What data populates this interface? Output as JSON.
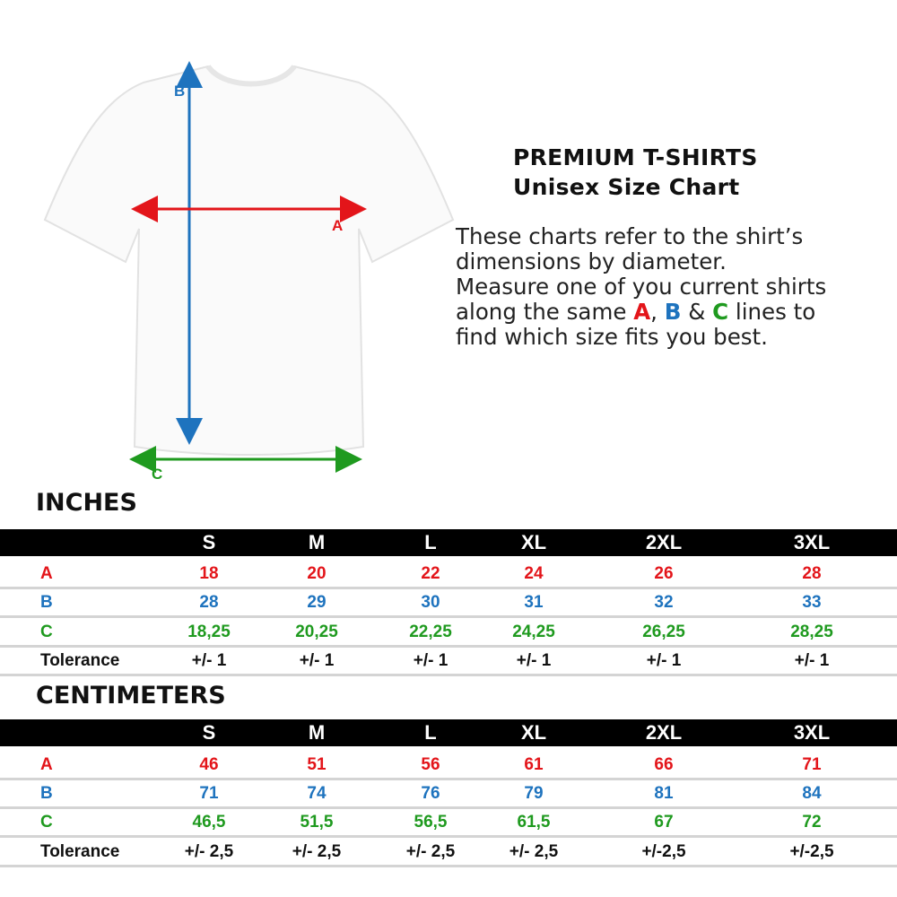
{
  "colors": {
    "A": "#e3151a",
    "B": "#1e73be",
    "C": "#1f9a1f",
    "text": "#111111",
    "header_bg": "#000000"
  },
  "diagram": {
    "labels": {
      "A": "A",
      "B": "B",
      "C": "C"
    }
  },
  "info": {
    "title_line1": "PREMIUM T-SHIRTS",
    "title_line2": "Unisex Size Chart",
    "desc_1": "These charts refer to the shirt’s",
    "desc_2": "dimensions by diameter.",
    "desc_3": "Measure one of you current shirts",
    "desc_4a": "along the same ",
    "desc_4A": "A",
    "desc_4b": ", ",
    "desc_4B": "B",
    "desc_4c": " & ",
    "desc_4C": "C",
    "desc_4d": " lines to",
    "desc_5": "find which size fits you best."
  },
  "tables": [
    {
      "heading": "INCHES",
      "sizes": [
        "S",
        "M",
        "L",
        "XL",
        "2XL",
        "3XL"
      ],
      "rows": [
        {
          "label": "A",
          "values": [
            "18",
            "20",
            "22",
            "24",
            "26",
            "28"
          ]
        },
        {
          "label": "B",
          "values": [
            "28",
            "29",
            "30",
            "31",
            "32",
            "33"
          ]
        },
        {
          "label": "C",
          "values": [
            "18,25",
            "20,25",
            "22,25",
            "24,25",
            "26,25",
            "28,25"
          ]
        },
        {
          "label": "Tolerance",
          "values": [
            "+/- 1",
            "+/- 1",
            "+/- 1",
            "+/- 1",
            "+/- 1",
            "+/- 1"
          ]
        }
      ]
    },
    {
      "heading": "CENTIMETERS",
      "sizes": [
        "S",
        "M",
        "L",
        "XL",
        "2XL",
        "3XL"
      ],
      "rows": [
        {
          "label": "A",
          "values": [
            "46",
            "51",
            "56",
            "61",
            "66",
            "71"
          ]
        },
        {
          "label": "B",
          "values": [
            "71",
            "74",
            "76",
            "79",
            "81",
            "84"
          ]
        },
        {
          "label": "C",
          "values": [
            "46,5",
            "51,5",
            "56,5",
            "61,5",
            "67",
            "72"
          ]
        },
        {
          "label": "Tolerance",
          "values": [
            "+/- 2,5",
            "+/- 2,5",
            "+/- 2,5",
            "+/- 2,5",
            "+/-2,5",
            "+/-2,5"
          ]
        }
      ]
    }
  ]
}
